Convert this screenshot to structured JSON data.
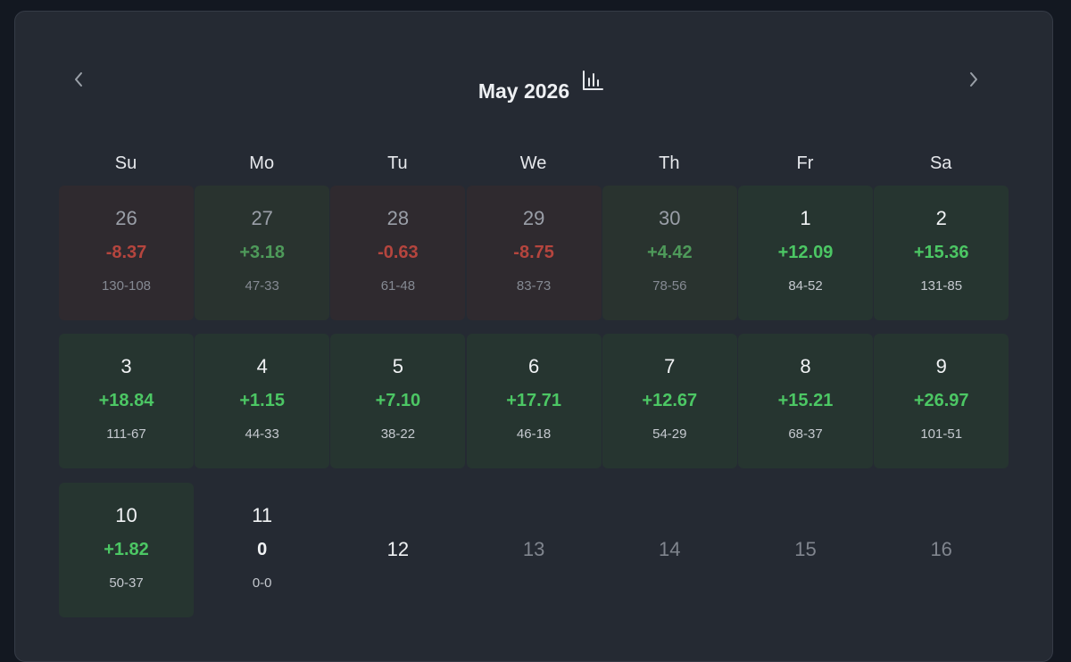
{
  "header": {
    "title": "May 2026"
  },
  "weekdays": [
    "Su",
    "Mo",
    "Tu",
    "We",
    "Th",
    "Fr",
    "Sa"
  ],
  "weeks": [
    [
      {
        "day": "26",
        "pnl": "-8.37",
        "record": "130-108"
      },
      {
        "day": "27",
        "pnl": "+3.18",
        "record": "47-33"
      },
      {
        "day": "28",
        "pnl": "-0.63",
        "record": "61-48"
      },
      {
        "day": "29",
        "pnl": "-8.75",
        "record": "83-73"
      },
      {
        "day": "30",
        "pnl": "+4.42",
        "record": "78-56"
      },
      {
        "day": "1",
        "pnl": "+12.09",
        "record": "84-52"
      },
      {
        "day": "2",
        "pnl": "+15.36",
        "record": "131-85"
      }
    ],
    [
      {
        "day": "3",
        "pnl": "+18.84",
        "record": "111-67"
      },
      {
        "day": "4",
        "pnl": "+1.15",
        "record": "44-33"
      },
      {
        "day": "5",
        "pnl": "+7.10",
        "record": "38-22"
      },
      {
        "day": "6",
        "pnl": "+17.71",
        "record": "46-18"
      },
      {
        "day": "7",
        "pnl": "+12.67",
        "record": "54-29"
      },
      {
        "day": "8",
        "pnl": "+15.21",
        "record": "68-37"
      },
      {
        "day": "9",
        "pnl": "+26.97",
        "record": "101-51"
      }
    ],
    [
      {
        "day": "10",
        "pnl": "+1.82",
        "record": "50-37"
      },
      {
        "day": "11",
        "pnl": "0",
        "record": "0-0"
      },
      {
        "day": "12"
      },
      {
        "day": "13"
      },
      {
        "day": "14"
      },
      {
        "day": "15"
      },
      {
        "day": "16"
      }
    ]
  ]
}
